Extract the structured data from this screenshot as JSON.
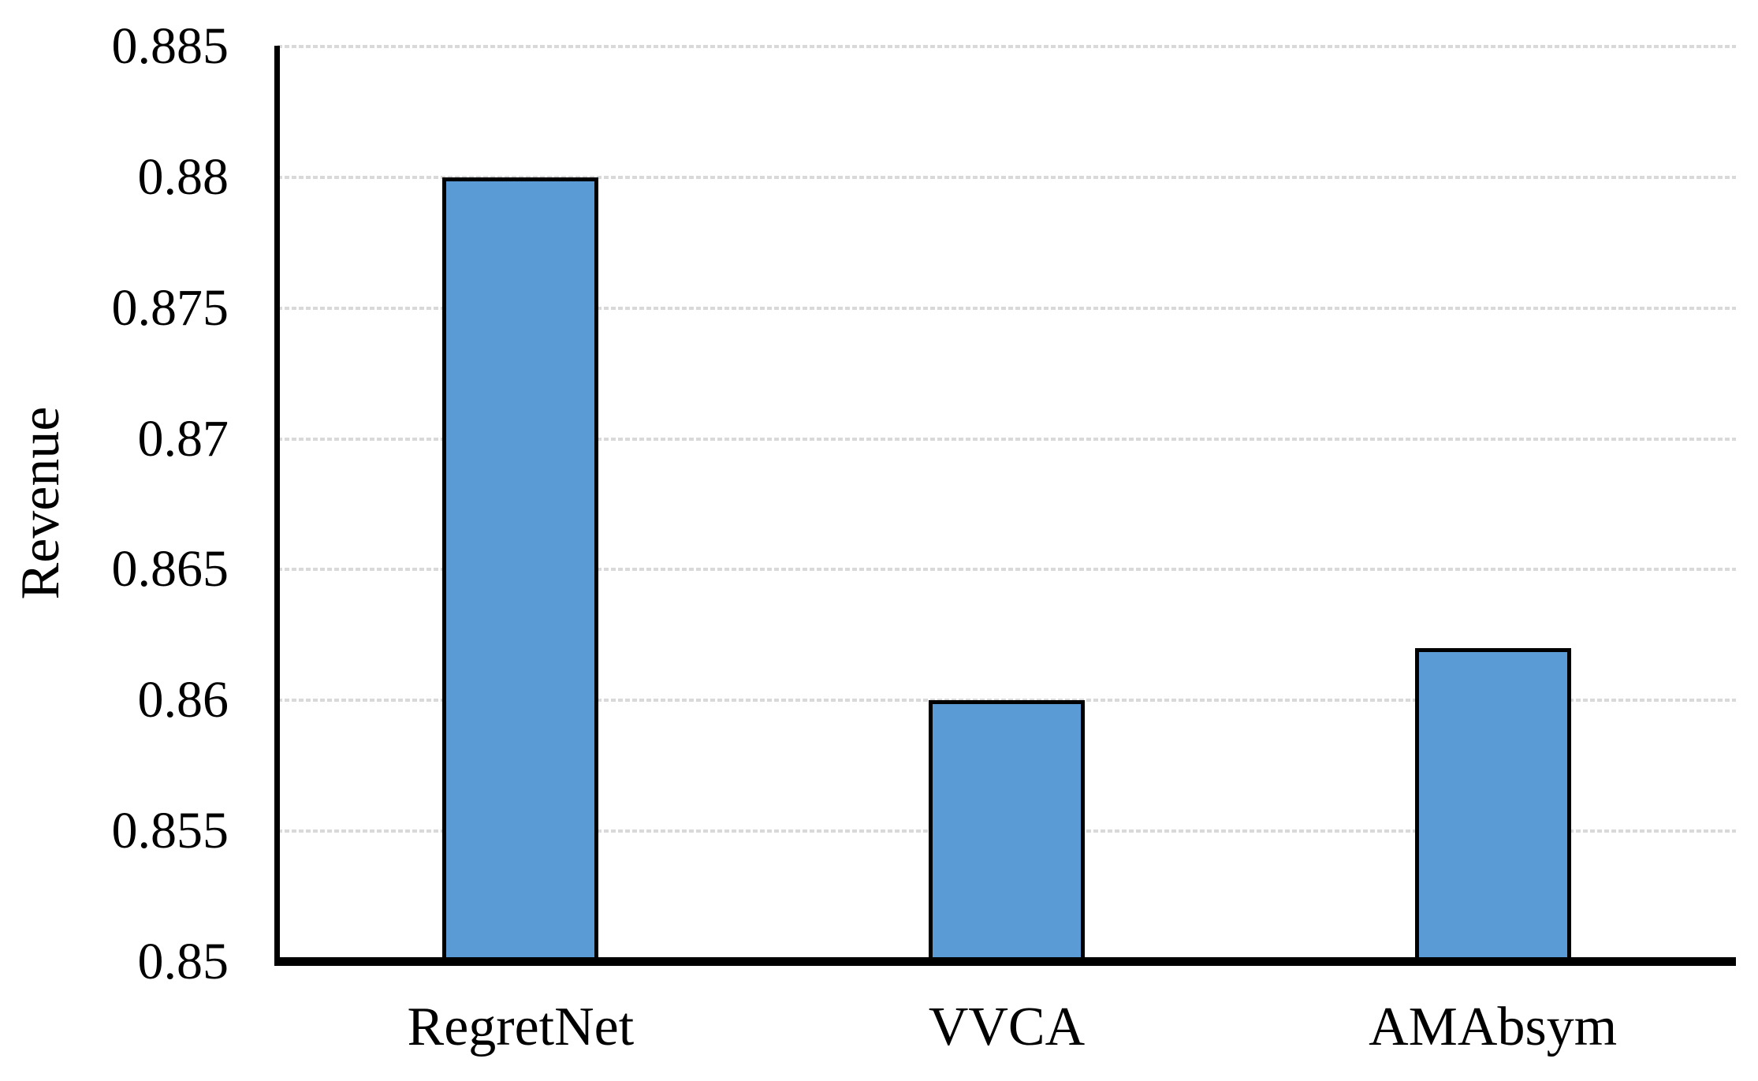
{
  "chart_data": {
    "type": "bar",
    "categories": [
      "RegretNet",
      "VVCA",
      "AMAbsym"
    ],
    "values": [
      0.88,
      0.86,
      0.862
    ],
    "title": "",
    "xlabel": "",
    "ylabel": "Revenue",
    "ylim": [
      0.85,
      0.885
    ],
    "ytick_step": 0.005,
    "ytick_labels": [
      "0.85",
      "0.855",
      "0.86",
      "0.865",
      "0.87",
      "0.875",
      "0.88",
      "0.885"
    ],
    "grid": true,
    "legend": "none",
    "colors": {
      "bar_fill": "#5B9BD5",
      "bar_border": "#000000",
      "axis": "#000000",
      "gridline": "#D9D9D9",
      "text": "#000000",
      "background": "#FFFFFF"
    }
  }
}
